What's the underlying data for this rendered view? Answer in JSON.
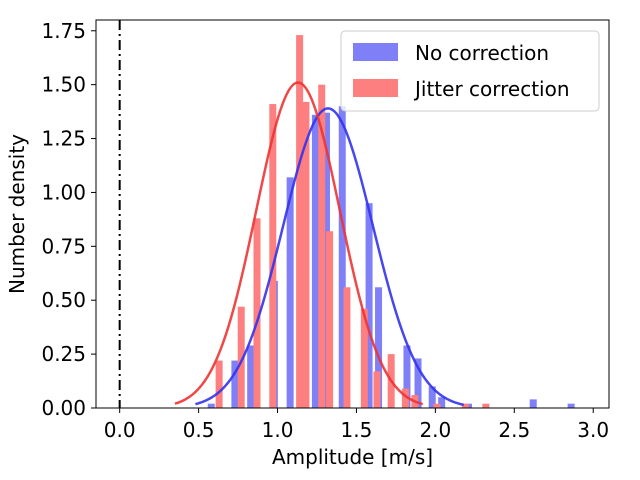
{
  "chart_data": {
    "type": "bar",
    "xlabel": "Amplitude [m/s]",
    "ylabel": "Number density",
    "xlim": [
      -0.15,
      3.1
    ],
    "ylim": [
      0,
      1.8
    ],
    "xticks": [
      "0.0",
      "0.5",
      "1.0",
      "1.5",
      "2.0",
      "2.5",
      "3.0"
    ],
    "xtick_values": [
      0.0,
      0.5,
      1.0,
      1.5,
      2.0,
      2.5,
      3.0
    ],
    "yticks": [
      "0.00",
      "0.25",
      "0.50",
      "0.75",
      "1.00",
      "1.25",
      "1.50",
      "1.75"
    ],
    "ytick_values": [
      0.0,
      0.25,
      0.5,
      0.75,
      1.0,
      1.25,
      1.5,
      1.75
    ],
    "grid": false,
    "legend_position": "top-right",
    "reference_line": {
      "x": 0.0,
      "style": "dash-dot",
      "color": "#000000"
    },
    "series": [
      {
        "name": "No correction",
        "color": "#7f7ff7",
        "bin_centers": [
          0.58,
          0.73,
          0.83,
          0.98,
          1.08,
          1.24,
          1.31,
          1.41,
          1.58,
          1.64,
          1.82,
          1.89,
          1.98,
          2.04,
          2.21,
          2.62,
          2.86
        ],
        "values": [
          0.02,
          0.22,
          0.29,
          0.59,
          1.07,
          1.36,
          1.37,
          1.4,
          0.95,
          0.56,
          0.29,
          0.23,
          0.1,
          0.05,
          0.02,
          0.04,
          0.02
        ],
        "fit": {
          "mean": 1.32,
          "sigma": 0.285,
          "amplitude": 1.39,
          "x_range": [
            0.48,
            2.18
          ]
        }
      },
      {
        "name": "Jitter correction",
        "color": "#fe7f7f",
        "bin_centers": [
          0.63,
          0.77,
          0.87,
          0.97,
          1.14,
          1.18,
          1.28,
          1.33,
          1.44,
          1.55,
          1.63,
          1.72,
          1.81,
          1.87,
          2.01,
          2.19,
          2.32
        ],
        "values": [
          0.22,
          0.47,
          0.88,
          1.41,
          1.73,
          1.42,
          1.5,
          0.82,
          0.56,
          0.46,
          0.17,
          0.25,
          0.09,
          0.06,
          0.02,
          0.02,
          0.02
        ],
        "fit": {
          "mean": 1.13,
          "sigma": 0.265,
          "amplitude": 1.51,
          "x_range": [
            0.35,
            1.92
          ]
        }
      }
    ]
  }
}
